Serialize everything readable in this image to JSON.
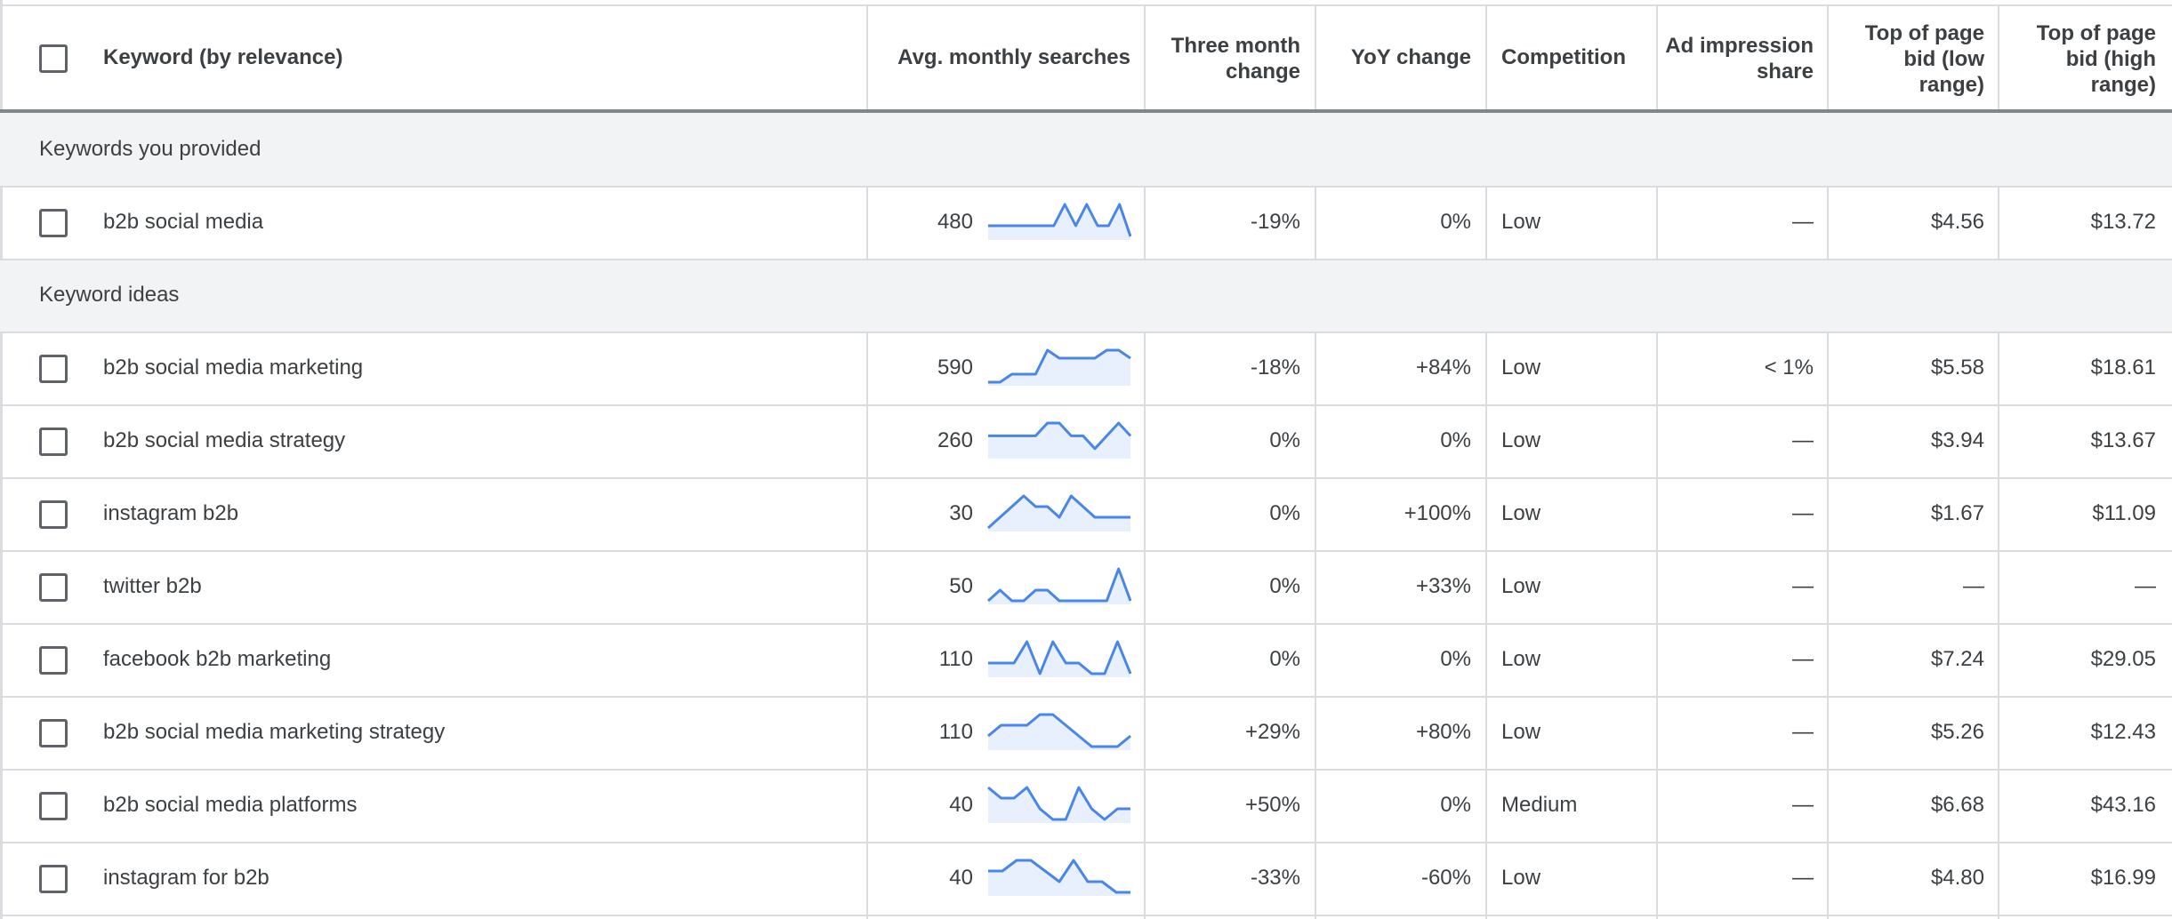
{
  "header": {
    "keyword": "Keyword (by relevance)",
    "avg_monthly_searches": "Avg. monthly searches",
    "three_month_change": [
      "Three month",
      "change"
    ],
    "yoy_change": "YoY change",
    "competition": "Competition",
    "ad_impression_share": [
      "Ad impression",
      "share"
    ],
    "top_bid_low": [
      "Top of page",
      "bid (low",
      "range)"
    ],
    "top_bid_high": [
      "Top of page",
      "bid (high",
      "range)"
    ]
  },
  "sections": {
    "provided": "Keywords you provided",
    "ideas": "Keyword ideas"
  },
  "rows": [
    {
      "keyword": "b2b social media",
      "searches": "480",
      "three_month": "-19%",
      "yoy": "0%",
      "competition": "Low",
      "impression_share": "—",
      "bid_low": "$4.56",
      "bid_high": "$13.72",
      "trend": [
        1,
        1,
        1,
        1,
        1,
        1,
        1,
        3,
        1,
        3,
        1,
        1,
        3,
        0
      ]
    },
    {
      "keyword": "b2b social media marketing",
      "searches": "590",
      "three_month": "-18%",
      "yoy": "+84%",
      "competition": "Low",
      "impression_share": "< 1%",
      "bid_low": "$5.58",
      "bid_high": "$18.61",
      "trend": [
        0,
        0,
        1,
        1,
        1,
        4,
        3,
        3,
        3,
        3,
        4,
        4,
        3
      ]
    },
    {
      "keyword": "b2b social media strategy",
      "searches": "260",
      "three_month": "0%",
      "yoy": "0%",
      "competition": "Low",
      "impression_share": "—",
      "bid_low": "$3.94",
      "bid_high": "$13.67",
      "trend": [
        3,
        3,
        3,
        3,
        3,
        5,
        5,
        3,
        3,
        1,
        3,
        5,
        3
      ]
    },
    {
      "keyword": "instagram b2b",
      "searches": "30",
      "three_month": "0%",
      "yoy": "+100%",
      "competition": "Low",
      "impression_share": "—",
      "bid_low": "$1.67",
      "bid_high": "$11.09",
      "trend": [
        0,
        1,
        2,
        3,
        2,
        2,
        1,
        3,
        2,
        1,
        1,
        1,
        1
      ]
    },
    {
      "keyword": "twitter b2b",
      "searches": "50",
      "three_month": "0%",
      "yoy": "+33%",
      "competition": "Low",
      "impression_share": "—",
      "bid_low": "—",
      "bid_high": "—",
      "trend": [
        0,
        1,
        0,
        0,
        1,
        1,
        0,
        0,
        0,
        0,
        0,
        3,
        0
      ]
    },
    {
      "keyword": "facebook b2b marketing",
      "searches": "110",
      "three_month": "0%",
      "yoy": "0%",
      "competition": "Low",
      "impression_share": "—",
      "bid_low": "$7.24",
      "bid_high": "$29.05",
      "trend": [
        1,
        1,
        1,
        3,
        0,
        3,
        1,
        1,
        0,
        0,
        3,
        0
      ]
    },
    {
      "keyword": "b2b social media marketing strategy",
      "searches": "110",
      "three_month": "+29%",
      "yoy": "+80%",
      "competition": "Low",
      "impression_share": "—",
      "bid_low": "$5.26",
      "bid_high": "$12.43",
      "trend": [
        1,
        2,
        2,
        2,
        3,
        3,
        2,
        1,
        0,
        0,
        0,
        1
      ]
    },
    {
      "keyword": "b2b social media platforms",
      "searches": "40",
      "three_month": "+50%",
      "yoy": "0%",
      "competition": "Medium",
      "impression_share": "—",
      "bid_low": "$6.68",
      "bid_high": "$43.16",
      "trend": [
        3,
        2,
        2,
        3,
        1,
        0,
        0,
        3,
        1,
        0,
        1,
        1
      ]
    },
    {
      "keyword": "instagram for b2b",
      "searches": "40",
      "three_month": "-33%",
      "yoy": "-60%",
      "competition": "Low",
      "impression_share": "—",
      "bid_low": "$4.80",
      "bid_high": "$16.99",
      "trend": [
        2,
        2,
        3,
        3,
        2,
        1,
        3,
        1,
        1,
        0,
        0
      ]
    }
  ],
  "colors": {
    "spark_line": "#4a86e8",
    "spark_fill": "#e8f0fe",
    "grid": "#dadce0",
    "section_bg": "#f1f3f4"
  },
  "icons": {
    "checkbox": "checkbox-icon"
  }
}
